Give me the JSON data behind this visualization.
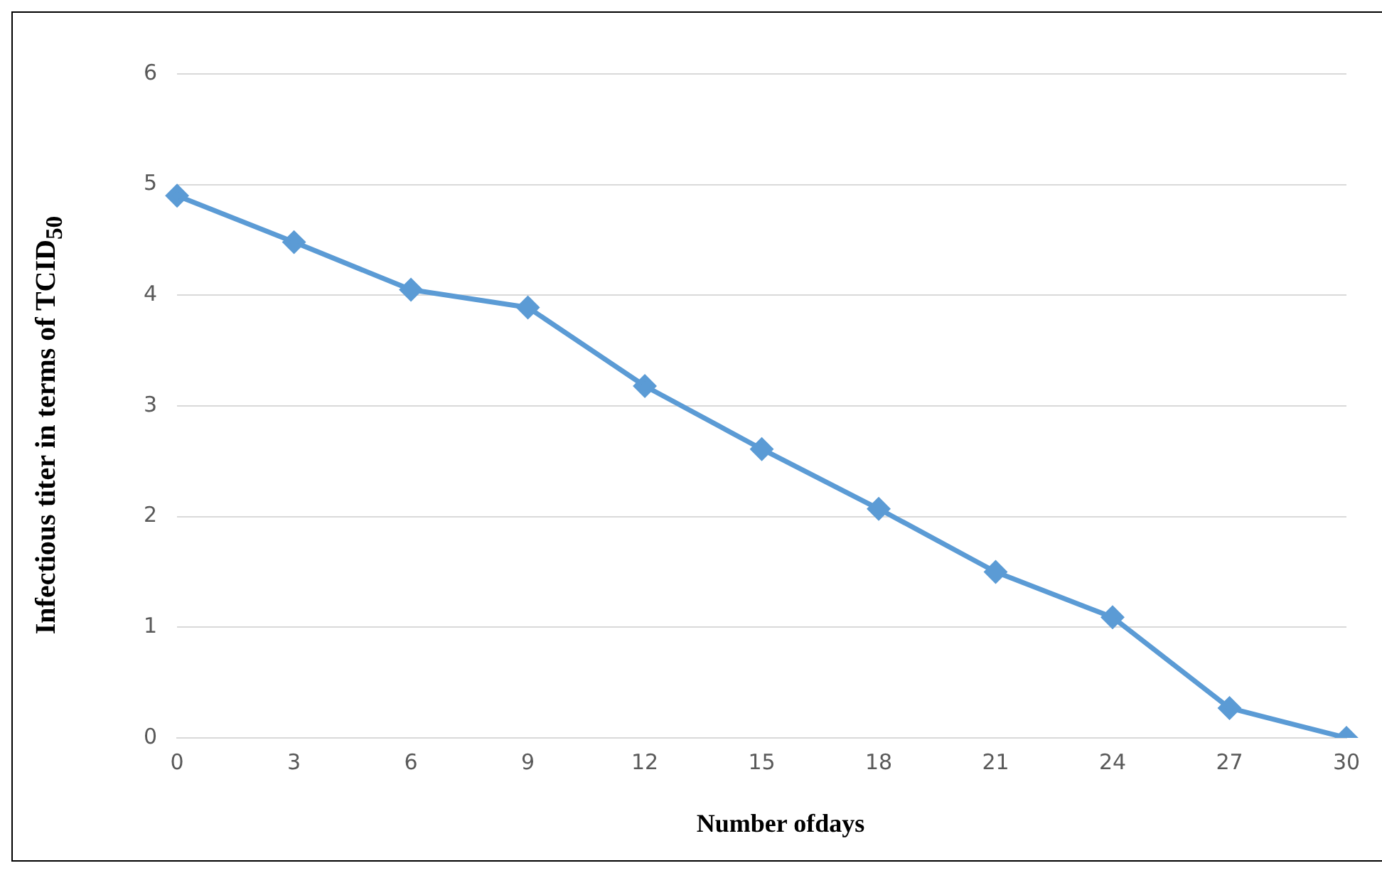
{
  "chart_data": {
    "type": "line",
    "xlabel": "Number ofdays",
    "ylabel": "Infectious titer in terms of TCID$_{50}$",
    "categories": [
      "0",
      "3",
      "6",
      "9",
      "12",
      "15",
      "18",
      "21",
      "24",
      "27",
      "30"
    ],
    "series": [
      {
        "color": "#5b9bd5",
        "values": [
          4.9,
          4.48,
          4.05,
          3.89,
          3.18,
          2.61,
          2.07,
          1.5,
          1.09,
          0.27,
          0
        ]
      }
    ],
    "ylim": [
      0,
      6
    ],
    "yticks": [
      0,
      1,
      2,
      3,
      4,
      5,
      6
    ],
    "grid": "y",
    "legend": false,
    "marker": "diamond",
    "line_style": "solid"
  }
}
